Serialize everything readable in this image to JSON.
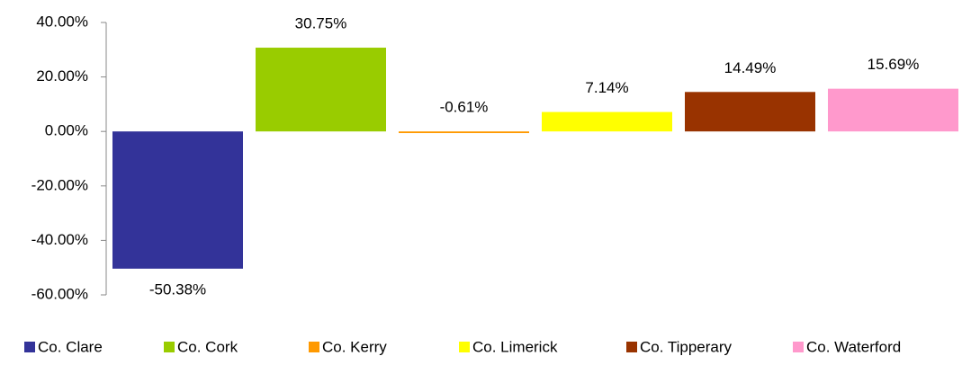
{
  "chart_data": {
    "type": "bar",
    "series": [
      {
        "name": "Co. Clare",
        "color": "#333399",
        "values": [
          -50.38
        ],
        "value_labels": [
          "-50.38%"
        ]
      },
      {
        "name": "Co. Cork",
        "color": "#99cc00",
        "values": [
          30.75
        ],
        "value_labels": [
          "30.75%"
        ]
      },
      {
        "name": "Co. Kerry",
        "color": "#ff9900",
        "values": [
          -0.61
        ],
        "value_labels": [
          "-0.61%"
        ]
      },
      {
        "name": "Co. Limerick",
        "color": "#ffff00",
        "values": [
          7.14
        ],
        "value_labels": [
          "7.14%"
        ]
      },
      {
        "name": "Co. Tipperary",
        "color": "#993300",
        "values": [
          14.49
        ],
        "value_labels": [
          "14.49%"
        ]
      },
      {
        "name": "Co. Waterford",
        "color": "#ff99cc",
        "values": [
          15.69
        ],
        "value_labels": [
          "15.69%"
        ]
      }
    ],
    "ylim": [
      -60,
      40
    ],
    "yticks": [
      {
        "value": -60,
        "label": "-60.00%"
      },
      {
        "value": -40,
        "label": "-40.00%"
      },
      {
        "value": -20,
        "label": "-20.00%"
      },
      {
        "value": 0,
        "label": "0.00%"
      },
      {
        "value": 20,
        "label": "20.00%"
      },
      {
        "value": 40,
        "label": "40.00%"
      }
    ],
    "legend": "bottom"
  }
}
